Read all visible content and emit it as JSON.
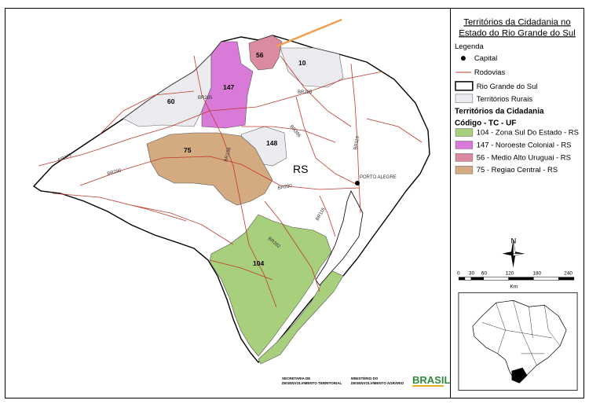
{
  "title_line1": "Territórios da Cidadania no",
  "title_line2": "Estado do Rio Grande do Sul",
  "legend": {
    "heading": "Legenda",
    "capital": "Capital",
    "roads": "Rodovias",
    "state": "Rio Grande do Sul",
    "rural": "Territórios Rurais",
    "territories_heading": "Territórios da Cidadania",
    "code_heading": "Código - TC - UF",
    "items": [
      {
        "label": "104 - Zona Sul Do Estado - RS",
        "color": "#a8cf7c"
      },
      {
        "label": "147 - Noroeste Colonial - RS",
        "color": "#d97ad9"
      },
      {
        "label": "56 - Medio Alto Uruguai - RS",
        "color": "#dc8aa0"
      },
      {
        "label": "75 - Regiao Central - RS",
        "color": "#d4aa80"
      }
    ]
  },
  "map_labels": {
    "state": "RS",
    "capital_city": "PORTO ALEGRE",
    "t104": "104",
    "t147": "147",
    "t56": "56",
    "t75": "75",
    "t148": "148",
    "t60": "60",
    "t10": "10"
  },
  "roads": {
    "br285a": "BR285",
    "br285b": "BR285",
    "br386": "BR386",
    "br116a": "BR116",
    "br116b": "BR116",
    "br158": "BR158",
    "br290a": "BR290",
    "br290b": "BR290",
    "br392": "BR392",
    "br472": "BR472"
  },
  "scale": {
    "ticks": [
      "0",
      "30",
      "60",
      "120",
      "180",
      "240"
    ],
    "unit": "Km"
  },
  "north": "N",
  "footer": {
    "org1_line1": "SECRETARIA DE",
    "org1_line2": "DESENVOLVIMENTO TERRITORIAL",
    "org2_line1": "MINISTÉRIO DO",
    "org2_line2": "DESENVOLVIMENTO AGRÁRIO",
    "brasil": "BRASIL"
  },
  "colors": {
    "road": "#c0392b",
    "rural": "#ececf0",
    "arrow": "#f0a050"
  }
}
